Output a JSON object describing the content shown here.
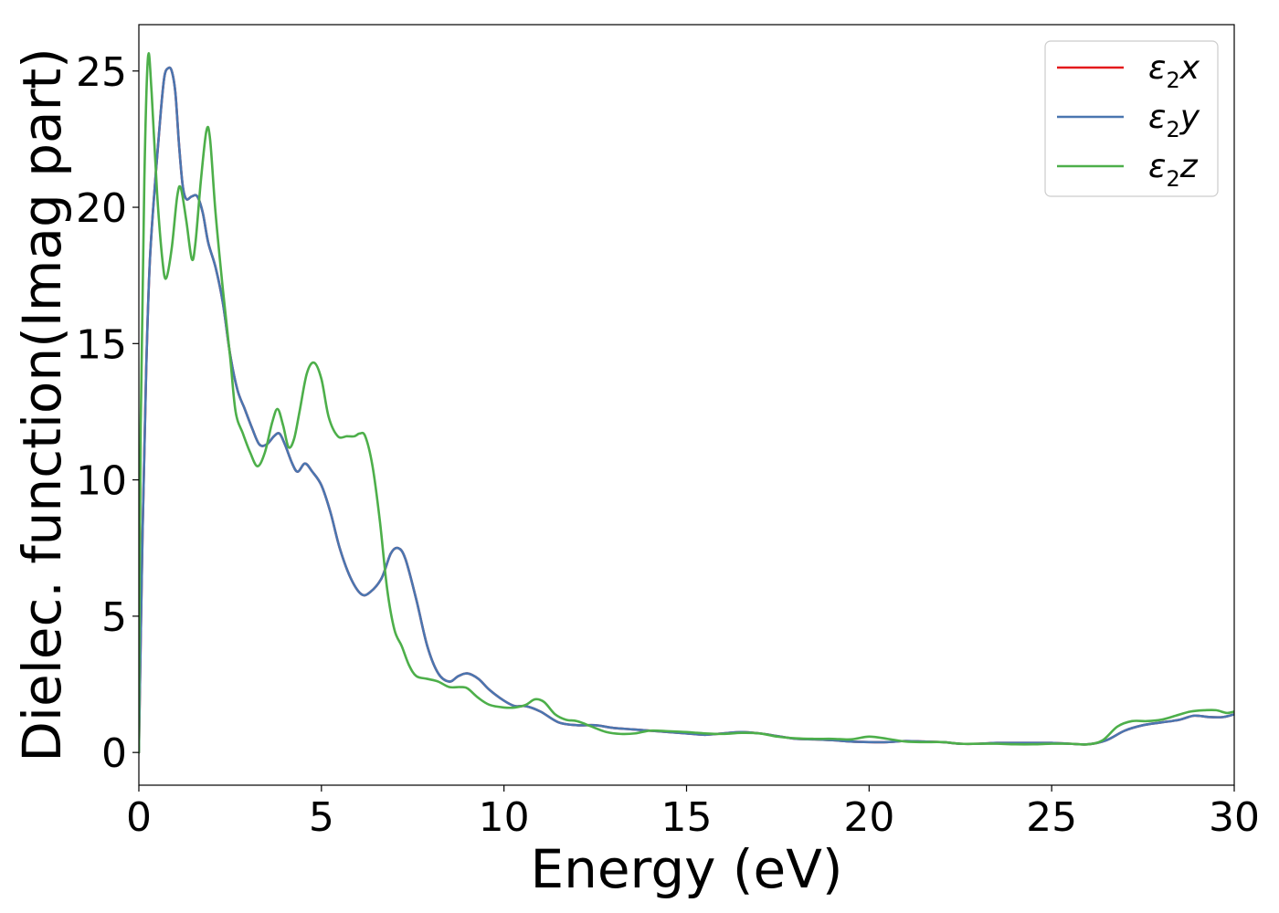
{
  "chart_data": {
    "type": "line",
    "title": "",
    "xlabel": "Energy (eV)",
    "ylabel": "Dielec. function(Imag part)",
    "xlim": [
      0,
      30
    ],
    "ylim": [
      -1.2,
      26.7
    ],
    "xticks": [
      0,
      5,
      10,
      15,
      20,
      25,
      30
    ],
    "yticks": [
      0,
      5,
      10,
      15,
      20,
      25
    ],
    "grid": false,
    "legend_position": "top-right",
    "series": [
      {
        "name": "ε₂x",
        "legend_base": "ε",
        "legend_sub": "2",
        "legend_tail": "x",
        "color": "#e41a1c",
        "points": [
          [
            0,
            0
          ],
          [
            0.1,
            8
          ],
          [
            0.2,
            14
          ],
          [
            0.3,
            18
          ],
          [
            0.45,
            21
          ],
          [
            0.6,
            23.5
          ],
          [
            0.7,
            24.8
          ],
          [
            0.8,
            25.1
          ],
          [
            0.9,
            25.0
          ],
          [
            1.0,
            24.2
          ],
          [
            1.1,
            22.3
          ],
          [
            1.2,
            20.8
          ],
          [
            1.3,
            20.3
          ],
          [
            1.45,
            20.4
          ],
          [
            1.6,
            20.4
          ],
          [
            1.75,
            19.8
          ],
          [
            1.9,
            18.7
          ],
          [
            2.1,
            17.8
          ],
          [
            2.3,
            16.5
          ],
          [
            2.5,
            14.6
          ],
          [
            2.7,
            13.3
          ],
          [
            2.9,
            12.6
          ],
          [
            3.1,
            11.9
          ],
          [
            3.3,
            11.3
          ],
          [
            3.5,
            11.3
          ],
          [
            3.7,
            11.6
          ],
          [
            3.85,
            11.7
          ],
          [
            4.0,
            11.3
          ],
          [
            4.2,
            10.6
          ],
          [
            4.35,
            10.3
          ],
          [
            4.55,
            10.6
          ],
          [
            4.75,
            10.3
          ],
          [
            5.0,
            9.8
          ],
          [
            5.25,
            8.8
          ],
          [
            5.5,
            7.5
          ],
          [
            5.8,
            6.4
          ],
          [
            6.1,
            5.8
          ],
          [
            6.35,
            5.9
          ],
          [
            6.65,
            6.4
          ],
          [
            6.9,
            7.3
          ],
          [
            7.1,
            7.5
          ],
          [
            7.3,
            7.1
          ],
          [
            7.6,
            5.6
          ],
          [
            7.9,
            3.9
          ],
          [
            8.2,
            2.9
          ],
          [
            8.5,
            2.6
          ],
          [
            8.75,
            2.8
          ],
          [
            9.0,
            2.9
          ],
          [
            9.3,
            2.7
          ],
          [
            9.6,
            2.3
          ],
          [
            10.0,
            1.9
          ],
          [
            10.3,
            1.7
          ],
          [
            10.6,
            1.7
          ],
          [
            11.0,
            1.5
          ],
          [
            11.5,
            1.1
          ],
          [
            12.0,
            1.0
          ],
          [
            12.5,
            1.0
          ],
          [
            13.0,
            0.9
          ],
          [
            13.5,
            0.85
          ],
          [
            14.0,
            0.8
          ],
          [
            14.5,
            0.75
          ],
          [
            15.0,
            0.7
          ],
          [
            15.5,
            0.65
          ],
          [
            16.0,
            0.7
          ],
          [
            16.5,
            0.75
          ],
          [
            17.0,
            0.7
          ],
          [
            17.5,
            0.6
          ],
          [
            18.0,
            0.5
          ],
          [
            18.5,
            0.48
          ],
          [
            19.0,
            0.45
          ],
          [
            19.5,
            0.4
          ],
          [
            20.0,
            0.38
          ],
          [
            20.5,
            0.38
          ],
          [
            21.0,
            0.42
          ],
          [
            21.5,
            0.4
          ],
          [
            22.0,
            0.38
          ],
          [
            22.5,
            0.32
          ],
          [
            23.0,
            0.32
          ],
          [
            23.5,
            0.35
          ],
          [
            24.0,
            0.35
          ],
          [
            24.5,
            0.35
          ],
          [
            25.0,
            0.35
          ],
          [
            25.5,
            0.32
          ],
          [
            26.0,
            0.3
          ],
          [
            26.5,
            0.45
          ],
          [
            27.0,
            0.8
          ],
          [
            27.5,
            1.0
          ],
          [
            28.0,
            1.1
          ],
          [
            28.5,
            1.2
          ],
          [
            28.9,
            1.35
          ],
          [
            29.3,
            1.3
          ],
          [
            29.7,
            1.3
          ],
          [
            30.0,
            1.4
          ]
        ]
      },
      {
        "name": "ε₂y",
        "legend_base": "ε",
        "legend_sub": "2",
        "legend_tail": "y",
        "color": "#4a76b0",
        "points": [
          [
            0,
            0
          ],
          [
            0.1,
            8
          ],
          [
            0.2,
            14
          ],
          [
            0.3,
            18
          ],
          [
            0.45,
            21
          ],
          [
            0.6,
            23.5
          ],
          [
            0.7,
            24.8
          ],
          [
            0.8,
            25.1
          ],
          [
            0.9,
            25.0
          ],
          [
            1.0,
            24.2
          ],
          [
            1.1,
            22.3
          ],
          [
            1.2,
            20.8
          ],
          [
            1.3,
            20.3
          ],
          [
            1.45,
            20.4
          ],
          [
            1.6,
            20.4
          ],
          [
            1.75,
            19.8
          ],
          [
            1.9,
            18.7
          ],
          [
            2.1,
            17.8
          ],
          [
            2.3,
            16.5
          ],
          [
            2.5,
            14.6
          ],
          [
            2.7,
            13.3
          ],
          [
            2.9,
            12.6
          ],
          [
            3.1,
            11.9
          ],
          [
            3.3,
            11.3
          ],
          [
            3.5,
            11.3
          ],
          [
            3.7,
            11.6
          ],
          [
            3.85,
            11.7
          ],
          [
            4.0,
            11.3
          ],
          [
            4.2,
            10.6
          ],
          [
            4.35,
            10.3
          ],
          [
            4.55,
            10.6
          ],
          [
            4.75,
            10.3
          ],
          [
            5.0,
            9.8
          ],
          [
            5.25,
            8.8
          ],
          [
            5.5,
            7.5
          ],
          [
            5.8,
            6.4
          ],
          [
            6.1,
            5.8
          ],
          [
            6.35,
            5.9
          ],
          [
            6.65,
            6.4
          ],
          [
            6.9,
            7.3
          ],
          [
            7.1,
            7.5
          ],
          [
            7.3,
            7.1
          ],
          [
            7.6,
            5.6
          ],
          [
            7.9,
            3.9
          ],
          [
            8.2,
            2.9
          ],
          [
            8.5,
            2.6
          ],
          [
            8.75,
            2.8
          ],
          [
            9.0,
            2.9
          ],
          [
            9.3,
            2.7
          ],
          [
            9.6,
            2.3
          ],
          [
            10.0,
            1.9
          ],
          [
            10.3,
            1.7
          ],
          [
            10.6,
            1.7
          ],
          [
            11.0,
            1.5
          ],
          [
            11.5,
            1.1
          ],
          [
            12.0,
            1.0
          ],
          [
            12.5,
            1.0
          ],
          [
            13.0,
            0.9
          ],
          [
            13.5,
            0.85
          ],
          [
            14.0,
            0.8
          ],
          [
            14.5,
            0.75
          ],
          [
            15.0,
            0.7
          ],
          [
            15.5,
            0.65
          ],
          [
            16.0,
            0.7
          ],
          [
            16.5,
            0.75
          ],
          [
            17.0,
            0.7
          ],
          [
            17.5,
            0.6
          ],
          [
            18.0,
            0.5
          ],
          [
            18.5,
            0.48
          ],
          [
            19.0,
            0.45
          ],
          [
            19.5,
            0.4
          ],
          [
            20.0,
            0.38
          ],
          [
            20.5,
            0.38
          ],
          [
            21.0,
            0.42
          ],
          [
            21.5,
            0.4
          ],
          [
            22.0,
            0.38
          ],
          [
            22.5,
            0.32
          ],
          [
            23.0,
            0.32
          ],
          [
            23.5,
            0.35
          ],
          [
            24.0,
            0.35
          ],
          [
            24.5,
            0.35
          ],
          [
            25.0,
            0.35
          ],
          [
            25.5,
            0.32
          ],
          [
            26.0,
            0.3
          ],
          [
            26.5,
            0.45
          ],
          [
            27.0,
            0.8
          ],
          [
            27.5,
            1.0
          ],
          [
            28.0,
            1.1
          ],
          [
            28.5,
            1.2
          ],
          [
            28.9,
            1.35
          ],
          [
            29.3,
            1.3
          ],
          [
            29.7,
            1.3
          ],
          [
            30.0,
            1.4
          ]
        ]
      },
      {
        "name": "ε₂z",
        "legend_base": "ε",
        "legend_sub": "2",
        "legend_tail": "z",
        "color": "#4daf4a",
        "points": [
          [
            0,
            0
          ],
          [
            0.05,
            12
          ],
          [
            0.15,
            21
          ],
          [
            0.25,
            25.5
          ],
          [
            0.35,
            24.2
          ],
          [
            0.5,
            20.5
          ],
          [
            0.65,
            18.0
          ],
          [
            0.75,
            17.4
          ],
          [
            0.9,
            18.5
          ],
          [
            1.05,
            20.4
          ],
          [
            1.15,
            20.7
          ],
          [
            1.3,
            19.5
          ],
          [
            1.45,
            18.1
          ],
          [
            1.55,
            18.7
          ],
          [
            1.7,
            21.0
          ],
          [
            1.85,
            22.8
          ],
          [
            1.95,
            22.5
          ],
          [
            2.1,
            19.8
          ],
          [
            2.3,
            17.0
          ],
          [
            2.5,
            14.5
          ],
          [
            2.65,
            12.5
          ],
          [
            2.85,
            11.7
          ],
          [
            3.05,
            11.0
          ],
          [
            3.25,
            10.5
          ],
          [
            3.45,
            11.0
          ],
          [
            3.65,
            12.1
          ],
          [
            3.8,
            12.6
          ],
          [
            3.95,
            12.0
          ],
          [
            4.1,
            11.2
          ],
          [
            4.25,
            11.5
          ],
          [
            4.4,
            12.5
          ],
          [
            4.6,
            13.9
          ],
          [
            4.8,
            14.3
          ],
          [
            5.0,
            13.7
          ],
          [
            5.2,
            12.3
          ],
          [
            5.45,
            11.6
          ],
          [
            5.7,
            11.6
          ],
          [
            5.9,
            11.6
          ],
          [
            6.05,
            11.7
          ],
          [
            6.2,
            11.6
          ],
          [
            6.4,
            10.5
          ],
          [
            6.6,
            8.5
          ],
          [
            6.8,
            6.0
          ],
          [
            7.0,
            4.5
          ],
          [
            7.2,
            3.9
          ],
          [
            7.4,
            3.2
          ],
          [
            7.6,
            2.8
          ],
          [
            7.9,
            2.7
          ],
          [
            8.2,
            2.6
          ],
          [
            8.5,
            2.4
          ],
          [
            8.8,
            2.4
          ],
          [
            9.0,
            2.35
          ],
          [
            9.3,
            2.0
          ],
          [
            9.6,
            1.75
          ],
          [
            10.0,
            1.65
          ],
          [
            10.3,
            1.65
          ],
          [
            10.6,
            1.75
          ],
          [
            10.85,
            1.95
          ],
          [
            11.1,
            1.85
          ],
          [
            11.4,
            1.4
          ],
          [
            11.7,
            1.2
          ],
          [
            12.0,
            1.15
          ],
          [
            12.4,
            0.95
          ],
          [
            12.8,
            0.75
          ],
          [
            13.2,
            0.68
          ],
          [
            13.6,
            0.7
          ],
          [
            14.0,
            0.8
          ],
          [
            14.5,
            0.78
          ],
          [
            15.0,
            0.75
          ],
          [
            15.5,
            0.7
          ],
          [
            16.0,
            0.68
          ],
          [
            16.5,
            0.72
          ],
          [
            17.0,
            0.7
          ],
          [
            17.5,
            0.58
          ],
          [
            18.0,
            0.52
          ],
          [
            18.5,
            0.5
          ],
          [
            19.0,
            0.5
          ],
          [
            19.5,
            0.48
          ],
          [
            20.0,
            0.58
          ],
          [
            20.5,
            0.5
          ],
          [
            21.0,
            0.4
          ],
          [
            21.5,
            0.38
          ],
          [
            22.0,
            0.38
          ],
          [
            22.5,
            0.32
          ],
          [
            23.0,
            0.32
          ],
          [
            23.5,
            0.32
          ],
          [
            24.0,
            0.3
          ],
          [
            24.5,
            0.3
          ],
          [
            25.0,
            0.32
          ],
          [
            25.5,
            0.32
          ],
          [
            26.0,
            0.3
          ],
          [
            26.4,
            0.45
          ],
          [
            26.8,
            0.95
          ],
          [
            27.2,
            1.15
          ],
          [
            27.6,
            1.15
          ],
          [
            28.0,
            1.2
          ],
          [
            28.4,
            1.35
          ],
          [
            28.8,
            1.5
          ],
          [
            29.2,
            1.55
          ],
          [
            29.5,
            1.55
          ],
          [
            29.8,
            1.45
          ],
          [
            30.0,
            1.5
          ]
        ]
      }
    ]
  }
}
